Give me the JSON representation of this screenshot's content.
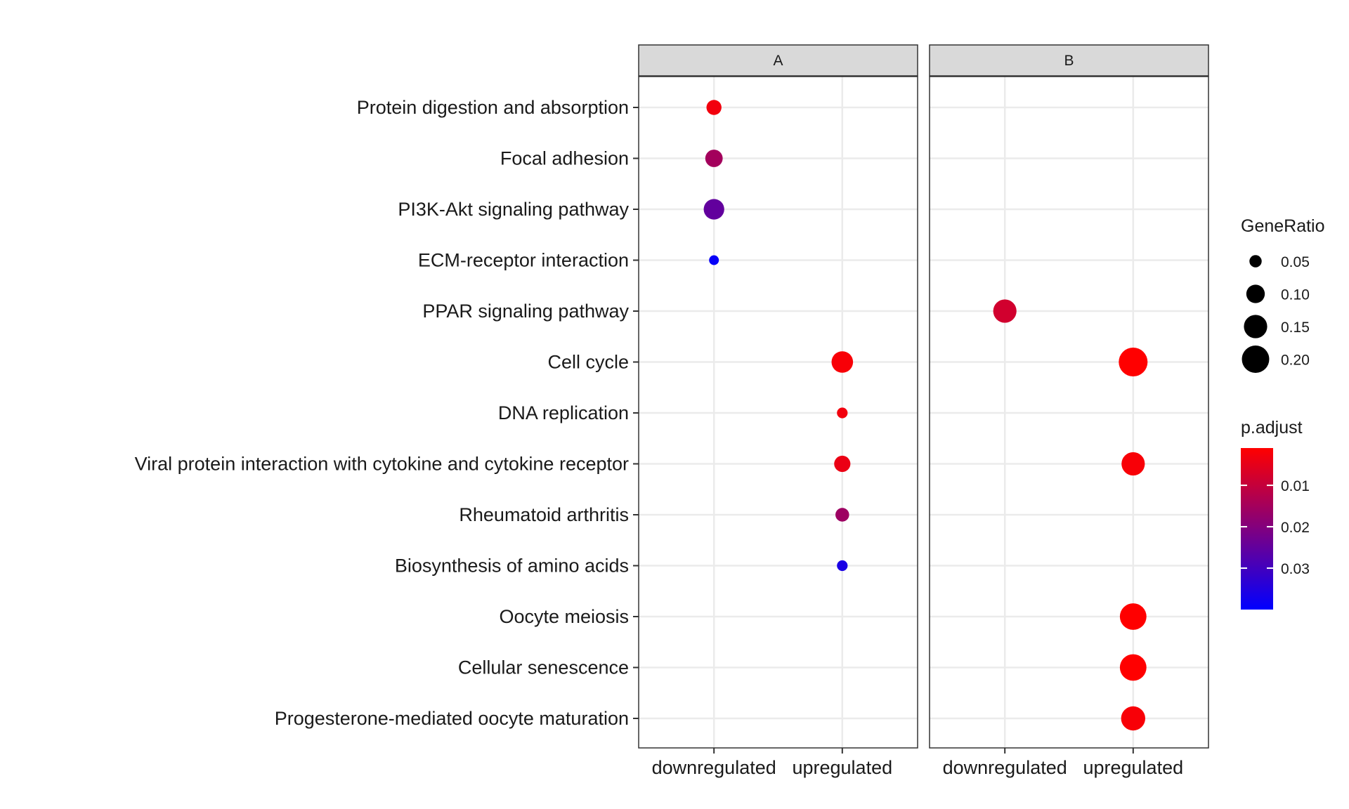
{
  "chart_data": {
    "type": "scatter",
    "facets": [
      "A",
      "B"
    ],
    "categories_x": [
      "downregulated",
      "upregulated"
    ],
    "categories_y": [
      "Protein digestion and absorption",
      "Focal adhesion",
      "PI3K-Akt signaling pathway",
      "ECM-receptor interaction",
      "PPAR signaling pathway",
      "Cell cycle",
      "DNA replication",
      "Viral protein interaction with cytokine and cytokine receptor",
      "Rheumatoid arthritis",
      "Biosynthesis of amino acids",
      "Oocyte meiosis",
      "Cellular senescence",
      "Progesterone-mediated oocyte maturation"
    ],
    "points": [
      {
        "facet": "A",
        "x": "downregulated",
        "y": "Protein digestion and absorption",
        "gene_ratio": 0.07,
        "p_adjust": 0.003
      },
      {
        "facet": "A",
        "x": "downregulated",
        "y": "Focal adhesion",
        "gene_ratio": 0.09,
        "p_adjust": 0.015
      },
      {
        "facet": "A",
        "x": "downregulated",
        "y": "PI3K-Akt signaling pathway",
        "gene_ratio": 0.12,
        "p_adjust": 0.025
      },
      {
        "facet": "A",
        "x": "downregulated",
        "y": "ECM-receptor interaction",
        "gene_ratio": 0.035,
        "p_adjust": 0.039
      },
      {
        "facet": "A",
        "x": "upregulated",
        "y": "Cell cycle",
        "gene_ratio": 0.13,
        "p_adjust": 0.002
      },
      {
        "facet": "A",
        "x": "upregulated",
        "y": "DNA replication",
        "gene_ratio": 0.04,
        "p_adjust": 0.003
      },
      {
        "facet": "A",
        "x": "upregulated",
        "y": "Viral protein interaction with cytokine and cytokine receptor",
        "gene_ratio": 0.08,
        "p_adjust": 0.004
      },
      {
        "facet": "A",
        "x": "upregulated",
        "y": "Rheumatoid arthritis",
        "gene_ratio": 0.06,
        "p_adjust": 0.016
      },
      {
        "facet": "A",
        "x": "upregulated",
        "y": "Biosynthesis of amino acids",
        "gene_ratio": 0.04,
        "p_adjust": 0.036
      },
      {
        "facet": "B",
        "x": "downregulated",
        "y": "PPAR signaling pathway",
        "gene_ratio": 0.15,
        "p_adjust": 0.008
      },
      {
        "facet": "B",
        "x": "upregulated",
        "y": "Cell cycle",
        "gene_ratio": 0.22,
        "p_adjust": 0.001
      },
      {
        "facet": "B",
        "x": "upregulated",
        "y": "Viral protein interaction with cytokine and cytokine receptor",
        "gene_ratio": 0.15,
        "p_adjust": 0.002
      },
      {
        "facet": "B",
        "x": "upregulated",
        "y": "Oocyte meiosis",
        "gene_ratio": 0.19,
        "p_adjust": 0.001
      },
      {
        "facet": "B",
        "x": "upregulated",
        "y": "Cellular senescence",
        "gene_ratio": 0.19,
        "p_adjust": 0.001
      },
      {
        "facet": "B",
        "x": "upregulated",
        "y": "Progesterone-mediated oocyte maturation",
        "gene_ratio": 0.16,
        "p_adjust": 0.002
      }
    ],
    "size_legend": {
      "title": "GeneRatio",
      "values": [
        0.05,
        0.1,
        0.15,
        0.2
      ],
      "labels": [
        "0.05",
        "0.10",
        "0.15",
        "0.20"
      ]
    },
    "color_legend": {
      "title": "p.adjust",
      "range": [
        0.001,
        0.04
      ],
      "ticks": [
        0.01,
        0.02,
        0.03
      ],
      "tick_labels": [
        "0.01",
        "0.02",
        "0.03"
      ],
      "low_color": "#ff0000",
      "high_color": "#0000ff"
    },
    "grid": true,
    "legend_position": "right",
    "colors": {
      "panel_border": "#333333",
      "strip_fill": "#d9d9d9",
      "grid": "#ebebeb"
    }
  }
}
